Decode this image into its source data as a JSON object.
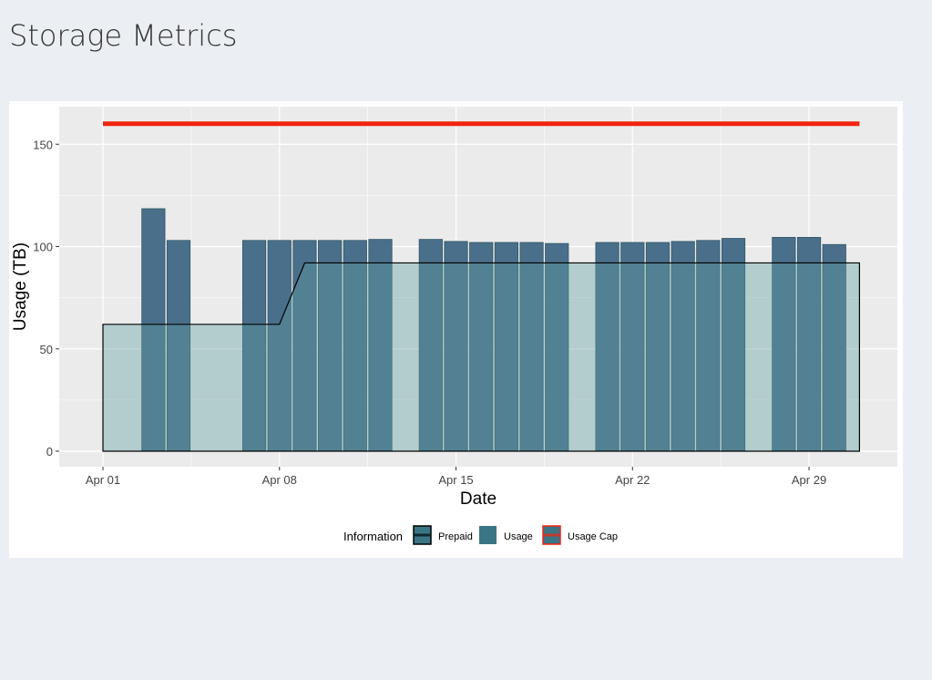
{
  "page_title": "Storage Metrics",
  "chart_data": {
    "type": "bar",
    "title": "",
    "xlabel": "Date",
    "ylabel": "Usage (TB)",
    "ylim": [
      -7,
      167
    ],
    "yticks": [
      0,
      50,
      100,
      150
    ],
    "xticks": [
      {
        "day": 1,
        "label": "Apr 01"
      },
      {
        "day": 8,
        "label": "Apr 08"
      },
      {
        "day": 15,
        "label": "Apr 15"
      },
      {
        "day": 22,
        "label": "Apr 22"
      },
      {
        "day": 29,
        "label": "Apr 29"
      }
    ],
    "grid": true,
    "usage": {
      "name": "Usage",
      "color": "#4a6f8a",
      "days": [
        3,
        4,
        7,
        8,
        9,
        10,
        11,
        12,
        14,
        15,
        16,
        17,
        18,
        19,
        21,
        22,
        23,
        24,
        25,
        26,
        28,
        29,
        30
      ],
      "values": [
        118.5,
        103,
        103,
        103,
        103,
        103,
        103,
        103.5,
        103.5,
        102.5,
        102,
        102,
        102,
        101.5,
        102,
        102,
        102,
        102.5,
        103,
        104,
        104.5,
        104.5,
        101
      ]
    },
    "prepaid": {
      "name": "Prepaid",
      "color": "#5f9ea0",
      "points": [
        [
          1,
          62
        ],
        [
          8,
          62
        ],
        [
          9,
          92
        ],
        [
          31,
          92
        ]
      ]
    },
    "usage_cap": {
      "name": "Usage Cap",
      "color": "#f0240d",
      "value": 160,
      "from": 1,
      "to": 31
    },
    "legend": {
      "title": "Information",
      "position": "bottom",
      "entries": [
        "Prepaid",
        "Usage",
        "Usage Cap"
      ]
    }
  }
}
